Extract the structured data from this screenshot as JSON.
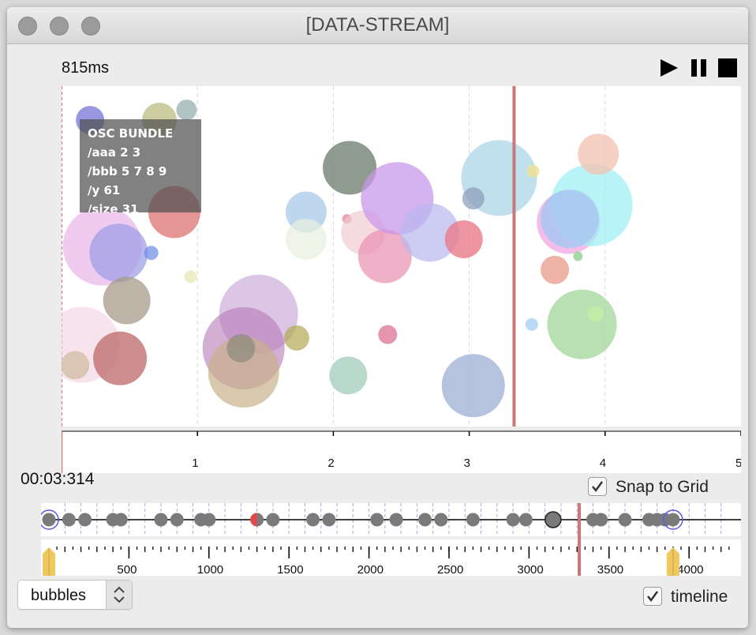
{
  "window": {
    "title": "[DATA-STREAM]"
  },
  "transport": {
    "elapsed": "815ms",
    "play_icon": "play-icon",
    "pause_icon": "pause-icon",
    "stop_icon": "stop-icon"
  },
  "stream": {
    "x_ticks": [
      "1",
      "2",
      "3",
      "4",
      "5"
    ],
    "xlim": [
      0,
      5
    ],
    "playhead": 3.33,
    "bubbles": [
      {
        "x": 0.21,
        "y": 0.1,
        "r": 18,
        "color": "#6b6bd6",
        "a": 0.7
      },
      {
        "x": 0.72,
        "y": 0.1,
        "r": 22,
        "color": "#b8b87a",
        "a": 0.7
      },
      {
        "x": 0.92,
        "y": 0.07,
        "r": 13,
        "color": "#8fa8a8",
        "a": 0.7
      },
      {
        "x": 0.3,
        "y": 0.47,
        "r": 50,
        "color": "#e6a8e6",
        "a": 0.6
      },
      {
        "x": 0.42,
        "y": 0.49,
        "r": 37,
        "color": "#9a9ae6",
        "a": 0.7
      },
      {
        "x": 0.66,
        "y": 0.49,
        "r": 9,
        "color": "#6b8ae6",
        "a": 0.7
      },
      {
        "x": 0.83,
        "y": 0.37,
        "r": 33,
        "color": "#e07a7a",
        "a": 0.8
      },
      {
        "x": 0.95,
        "y": 0.56,
        "r": 8,
        "color": "#e6e6b0",
        "a": 0.7
      },
      {
        "x": 0.48,
        "y": 0.63,
        "r": 30,
        "color": "#a89a8a",
        "a": 0.75
      },
      {
        "x": 0.15,
        "y": 0.76,
        "r": 48,
        "color": "#f2d0e0",
        "a": 0.6
      },
      {
        "x": 0.43,
        "y": 0.8,
        "r": 34,
        "color": "#c07070",
        "a": 0.8
      },
      {
        "x": 0.1,
        "y": 0.82,
        "r": 18,
        "color": "#c8b090",
        "a": 0.6
      },
      {
        "x": 1.45,
        "y": 0.67,
        "r": 50,
        "color": "#c8a8d8",
        "a": 0.65
      },
      {
        "x": 1.34,
        "y": 0.77,
        "r": 52,
        "color": "#b87ab8",
        "a": 0.6
      },
      {
        "x": 1.34,
        "y": 0.84,
        "r": 45,
        "color": "#c8b08a",
        "a": 0.7
      },
      {
        "x": 1.32,
        "y": 0.77,
        "r": 18,
        "color": "#8a8a7a",
        "a": 0.7
      },
      {
        "x": 1.73,
        "y": 0.74,
        "r": 16,
        "color": "#b0a850",
        "a": 0.7
      },
      {
        "x": 1.8,
        "y": 0.37,
        "r": 26,
        "color": "#a8c8e8",
        "a": 0.75
      },
      {
        "x": 1.8,
        "y": 0.45,
        "r": 26,
        "color": "#e8f0e0",
        "a": 0.7
      },
      {
        "x": 2.12,
        "y": 0.24,
        "r": 34,
        "color": "#7a8a7a",
        "a": 0.85
      },
      {
        "x": 2.1,
        "y": 0.39,
        "r": 6,
        "color": "#e090a0",
        "a": 0.8
      },
      {
        "x": 2.22,
        "y": 0.43,
        "r": 28,
        "color": "#f0c8d0",
        "a": 0.65
      },
      {
        "x": 2.38,
        "y": 0.5,
        "r": 34,
        "color": "#e890b0",
        "a": 0.7
      },
      {
        "x": 2.47,
        "y": 0.33,
        "r": 46,
        "color": "#c898e8",
        "a": 0.75
      },
      {
        "x": 2.71,
        "y": 0.43,
        "r": 37,
        "color": "#b8b8f0",
        "a": 0.7
      },
      {
        "x": 2.96,
        "y": 0.45,
        "r": 24,
        "color": "#e87a8a",
        "a": 0.8
      },
      {
        "x": 2.4,
        "y": 0.73,
        "r": 12,
        "color": "#e07a9a",
        "a": 0.8
      },
      {
        "x": 2.11,
        "y": 0.85,
        "r": 24,
        "color": "#a8d0c0",
        "a": 0.8
      },
      {
        "x": 3.03,
        "y": 0.88,
        "r": 40,
        "color": "#a8b8d8",
        "a": 0.85
      },
      {
        "x": 3.22,
        "y": 0.27,
        "r": 48,
        "color": "#b0d8ea",
        "a": 0.8
      },
      {
        "x": 3.03,
        "y": 0.33,
        "r": 14,
        "color": "#8a9ab8",
        "a": 0.7
      },
      {
        "x": 3.47,
        "y": 0.25,
        "r": 8,
        "color": "#f0e090",
        "a": 0.8
      },
      {
        "x": 3.73,
        "y": 0.4,
        "r": 40,
        "color": "#f0a0e0",
        "a": 0.7
      },
      {
        "x": 3.9,
        "y": 0.35,
        "r": 52,
        "color": "#a0f0f4",
        "a": 0.75
      },
      {
        "x": 3.74,
        "y": 0.39,
        "r": 37,
        "color": "#a8c8f0",
        "a": 0.85
      },
      {
        "x": 3.95,
        "y": 0.2,
        "r": 26,
        "color": "#f4c0b0",
        "a": 0.75
      },
      {
        "x": 3.63,
        "y": 0.54,
        "r": 18,
        "color": "#e8a090",
        "a": 0.8
      },
      {
        "x": 3.8,
        "y": 0.5,
        "r": 6,
        "color": "#90d090",
        "a": 0.8
      },
      {
        "x": 3.46,
        "y": 0.7,
        "r": 8,
        "color": "#a8d0f4",
        "a": 0.8
      },
      {
        "x": 3.83,
        "y": 0.7,
        "r": 44,
        "color": "#a8d8a0",
        "a": 0.8
      },
      {
        "x": 3.93,
        "y": 0.67,
        "r": 10,
        "color": "#c8f0a0",
        "a": 0.6
      }
    ]
  },
  "osc_tooltip": {
    "lines": [
      "OSC BUNDLE",
      "/aaa 2 3",
      "/bbb 5 7 8 9",
      "/y 61",
      "/size 31"
    ]
  },
  "clock": "00:03:314",
  "snap": {
    "label": "Snap to Grid",
    "checked": true
  },
  "timeline_track": {
    "xlim": [
      0,
      4300
    ],
    "ticks": [
      "500",
      "1000",
      "1500",
      "2000",
      "2500",
      "3000",
      "3500",
      "4000"
    ],
    "tick_values": [
      500,
      1000,
      1500,
      2000,
      2500,
      3000,
      3500,
      4000
    ],
    "playhead": 3314,
    "loop_start": 0,
    "loop_end": 3900,
    "events": [
      0,
      125,
      225,
      400,
      450,
      700,
      800,
      950,
      1000,
      1300,
      1400,
      1650,
      1750,
      2050,
      2170,
      2350,
      2450,
      2650,
      2900,
      2980,
      3150,
      3400,
      3450,
      3600,
      3750,
      3800,
      3850,
      3900
    ],
    "active_event": 1300,
    "selected_event": 3150,
    "marker_color": "#e04a4a",
    "loop_color": "#5a5ae6"
  },
  "mode_select": {
    "value": "bubbles"
  },
  "timeline_toggle": {
    "label": "timeline",
    "checked": true
  },
  "colors": {
    "playhead": "#c87878",
    "loop_flag": "#f0c860"
  }
}
